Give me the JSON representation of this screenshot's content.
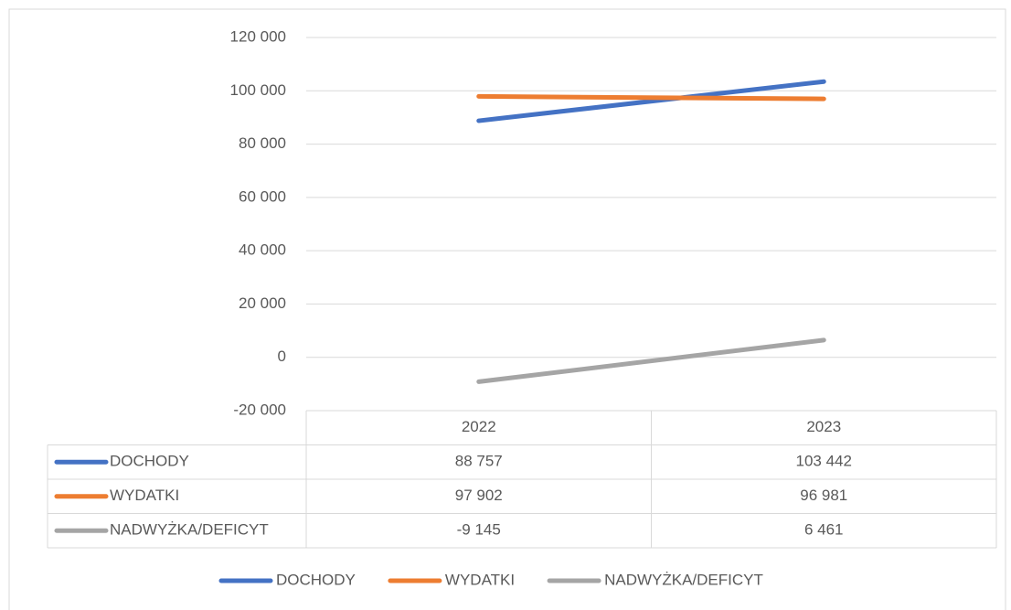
{
  "chart_data": {
    "type": "line",
    "categories": [
      "2022",
      "2023"
    ],
    "series": [
      {
        "name": "DOCHODY",
        "color": "#4472c4",
        "values": [
          88757,
          103442
        ],
        "value_labels": [
          "88 757",
          "103 442"
        ]
      },
      {
        "name": "WYDATKI",
        "color": "#ed7d31",
        "values": [
          97902,
          96981
        ],
        "value_labels": [
          "97 902",
          "96 981"
        ]
      },
      {
        "name": "NADWYŻKA/DEFICYT",
        "color": "#a5a5a5",
        "values": [
          -9145,
          6461
        ],
        "value_labels": [
          "-9 145",
          "6 461"
        ]
      }
    ],
    "ylim": [
      -20000,
      120000
    ],
    "yticks": [
      {
        "value": -20000,
        "label": "-20 000"
      },
      0,
      {
        "value": 20000,
        "label": "20 000"
      },
      {
        "value": 40000,
        "label": "40 000"
      },
      {
        "value": 60000,
        "label": "60 000"
      },
      {
        "value": 80000,
        "label": "80 000"
      },
      {
        "value": 100000,
        "label": "100 000"
      },
      {
        "value": 120000,
        "label": "120 000"
      }
    ],
    "grid": true,
    "legend": "bottom",
    "data_table": true
  }
}
